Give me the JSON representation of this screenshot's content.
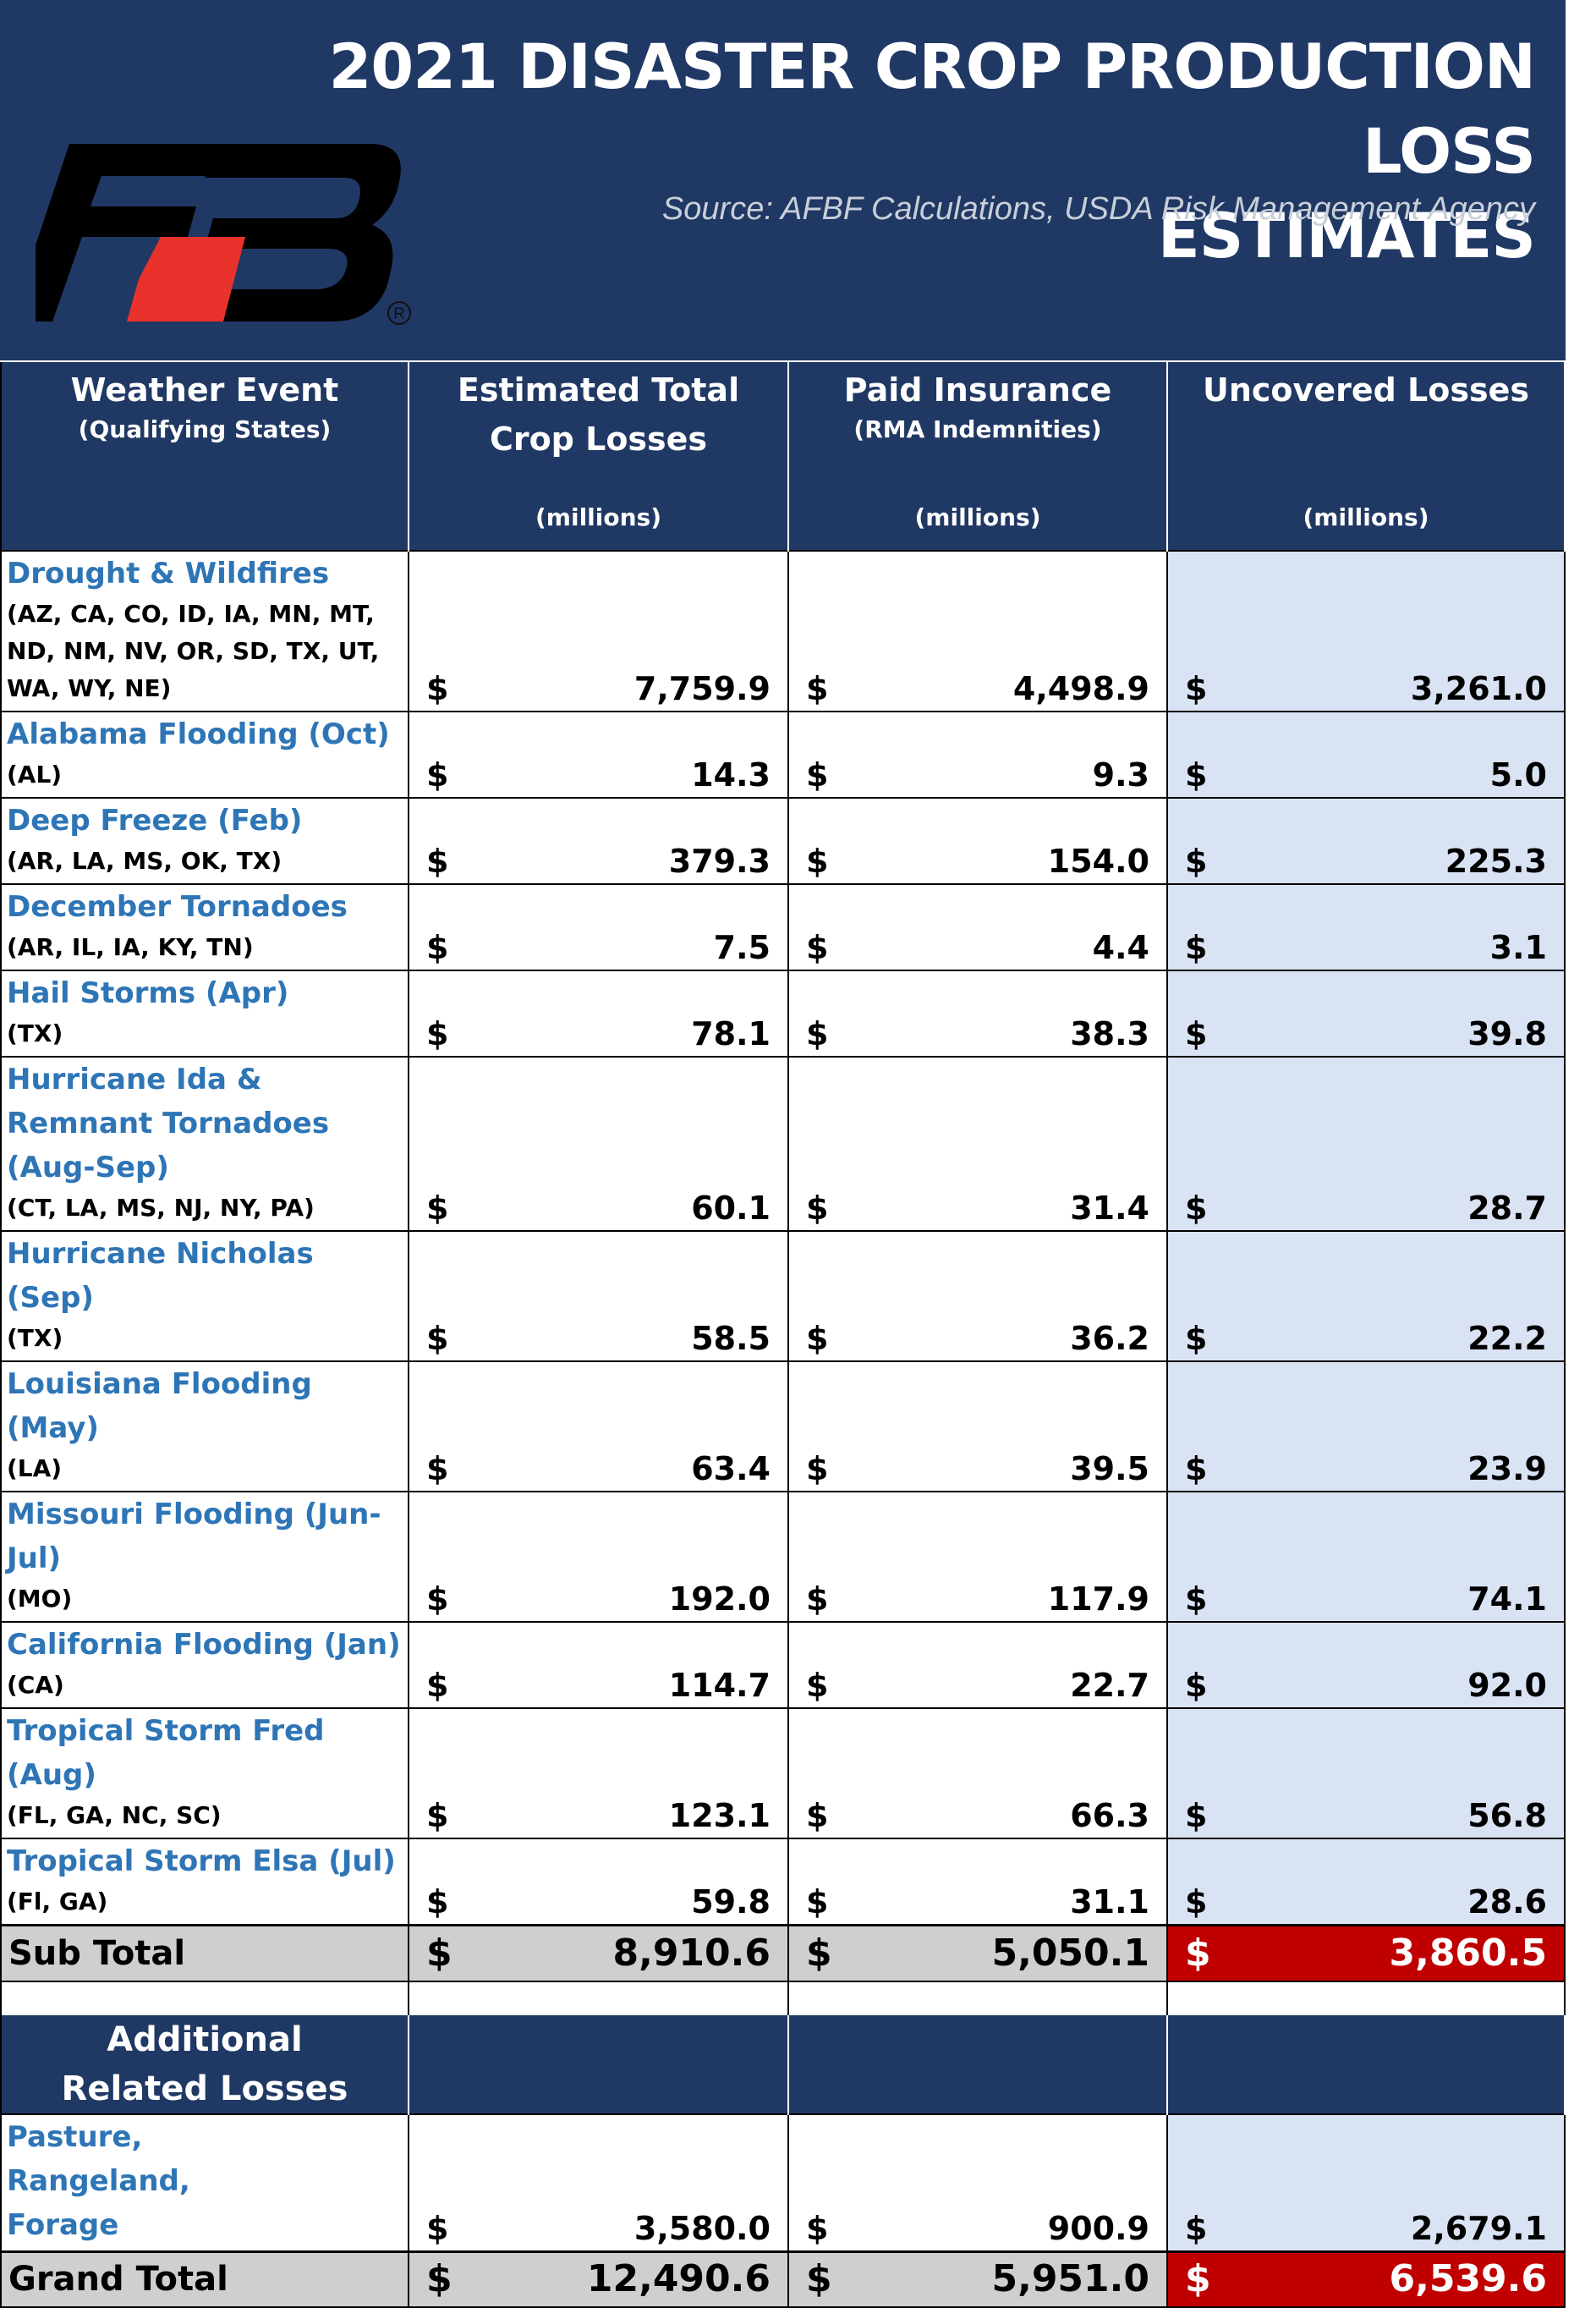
{
  "header": {
    "title_line1": "2021 DISASTER CROP PRODUCTION LOSS",
    "title_line2": "ESTIMATES",
    "source": "Source: AFBF Calculations, USDA Risk Management Agency",
    "logo_reg_mark": "R",
    "colors": {
      "background": "#203864",
      "logo_black": "#000000",
      "logo_red": "#e8322b"
    }
  },
  "columns": [
    {
      "title": "Weather Event",
      "subtitle": "(Qualifying States)",
      "unit": ""
    },
    {
      "title": "Estimated Total Crop Losses",
      "subtitle": "",
      "unit": "(millions)"
    },
    {
      "title": "Paid Insurance",
      "subtitle": "(RMA Indemnities)",
      "unit": "(millions)"
    },
    {
      "title": "Uncovered Losses",
      "subtitle": "",
      "unit": "(millions)"
    }
  ],
  "currency": "$",
  "rows": [
    {
      "event": "Drought & Wildfires",
      "states": "(AZ, CA, CO, ID, IA, MN, MT, ND, NM, NV, OR, SD, TX, UT, WA, WY, NE)",
      "total": "7,759.9",
      "paid": "4,498.9",
      "uncovered": "3,261.0"
    },
    {
      "event": "Alabama Flooding (Oct)",
      "states": "(AL)",
      "total": "14.3",
      "paid": "9.3",
      "uncovered": "5.0"
    },
    {
      "event": "Deep Freeze (Feb)",
      "states": "(AR, LA, MS, OK, TX)",
      "total": "379.3",
      "paid": "154.0",
      "uncovered": "225.3"
    },
    {
      "event": "December Tornadoes",
      "states": "(AR, IL, IA, KY, TN)",
      "total": "7.5",
      "paid": "4.4",
      "uncovered": "3.1"
    },
    {
      "event": "Hail Storms (Apr)",
      "states": "(TX)",
      "total": "78.1",
      "paid": "38.3",
      "uncovered": "39.8"
    },
    {
      "event": "Hurricane Ida & Remnant Tornadoes (Aug-Sep)",
      "states": "(CT, LA, MS, NJ, NY, PA)",
      "total": "60.1",
      "paid": "31.4",
      "uncovered": "28.7"
    },
    {
      "event": "Hurricane Nicholas (Sep)",
      "states": "(TX)",
      "total": "58.5",
      "paid": "36.2",
      "uncovered": "22.2"
    },
    {
      "event": "Louisiana Flooding (May)",
      "states": "(LA)",
      "total": "63.4",
      "paid": "39.5",
      "uncovered": "23.9"
    },
    {
      "event": "Missouri Flooding (Jun-Jul)",
      "states": "(MO)",
      "total": "192.0",
      "paid": "117.9",
      "uncovered": "74.1"
    },
    {
      "event": "California Flooding (Jan)",
      "states": "(CA)",
      "total": "114.7",
      "paid": "22.7",
      "uncovered": "92.0"
    },
    {
      "event": "Tropical Storm Fred (Aug)",
      "states": "(FL, GA, NC, SC)",
      "total": "123.1",
      "paid": "66.3",
      "uncovered": "56.8"
    },
    {
      "event": "Tropical Storm Elsa (Jul)",
      "states": "(Fl, GA)",
      "total": "59.8",
      "paid": "31.1",
      "uncovered": "28.6"
    }
  ],
  "subtotal": {
    "label": "Sub Total",
    "total": "8,910.6",
    "paid": "5,050.1",
    "uncovered": "3,860.5"
  },
  "additional": {
    "title": "Additional Related Losses",
    "row": {
      "event": "Pasture, Rangeland, Forage",
      "total": "3,580.0",
      "paid": "900.9",
      "uncovered": "2,679.1"
    }
  },
  "grandtotal": {
    "label": "Grand Total",
    "total": "12,490.6",
    "paid": "5,951.0",
    "uncovered": "6,539.6"
  },
  "colors": {
    "header_navy": "#203864",
    "event_blue": "#2e75b6",
    "uncovered_fill": "#dae3f3",
    "total_gray": "#d0cece",
    "total_red": "#c00000"
  }
}
